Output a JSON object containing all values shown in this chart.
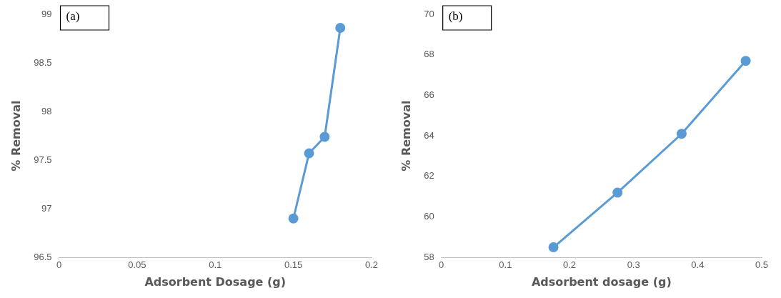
{
  "chart_data": [
    {
      "type": "line",
      "annotations": [
        "(a)"
      ],
      "xlabel": "Adsorbent Dosage (g)",
      "ylabel": "% Removal",
      "x": [
        0.15,
        0.16,
        0.17,
        0.18
      ],
      "series": [
        {
          "color": "#5b9bd5",
          "values": [
            96.9,
            97.57,
            97.74,
            98.86
          ]
        }
      ],
      "xlim": [
        0,
        0.2
      ],
      "xticks": [
        0,
        0.05,
        0.1,
        0.15,
        0.2
      ],
      "ylim": [
        96.5,
        99
      ],
      "yticks": [
        96.5,
        97,
        97.5,
        98,
        98.5,
        99
      ],
      "marker": "circle",
      "grid": false,
      "legend": false
    },
    {
      "type": "line",
      "annotations": [
        "(b)"
      ],
      "xlabel": "Adsorbent dosage (g)",
      "ylabel": "% Removal",
      "x": [
        0.175,
        0.275,
        0.375,
        0.475
      ],
      "series": [
        {
          "color": "#5b9bd5",
          "values": [
            58.5,
            61.2,
            64.1,
            67.7
          ]
        }
      ],
      "xlim": [
        0,
        0.5
      ],
      "xticks": [
        0,
        0.1,
        0.2,
        0.3,
        0.4,
        0.5
      ],
      "ylim": [
        58,
        70
      ],
      "yticks": [
        58,
        60,
        62,
        64,
        66,
        68,
        70
      ],
      "marker": "circle",
      "grid": false,
      "legend": false
    }
  ]
}
